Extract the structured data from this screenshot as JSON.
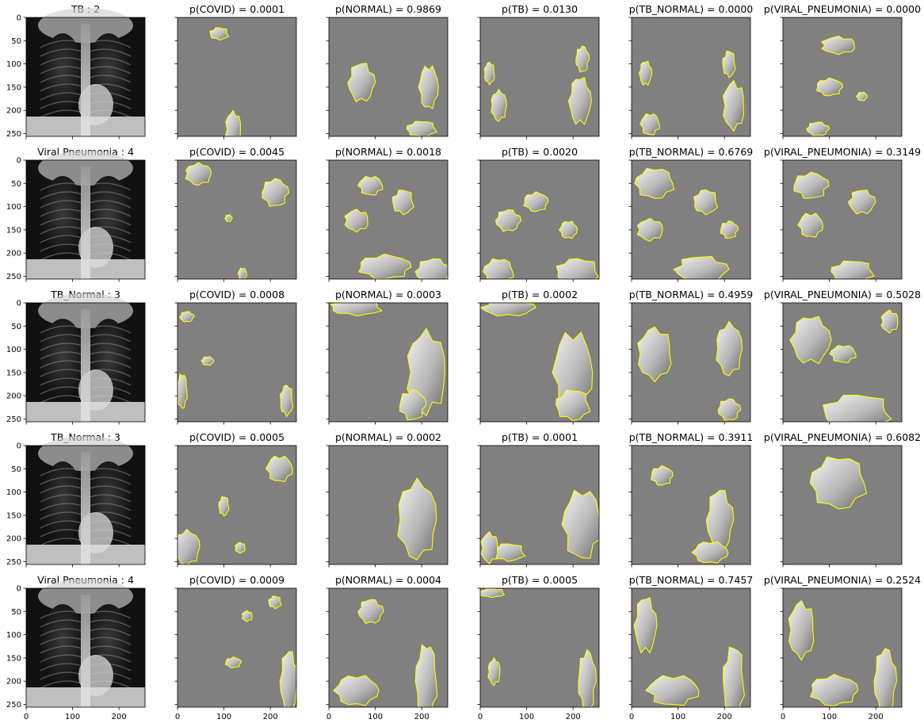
{
  "chart_data": {
    "type": "image_grid",
    "description": "",
    "x_ticks": [
      0,
      100,
      200
    ],
    "y_ticks": [
      0,
      50,
      100,
      150,
      200,
      250
    ],
    "axis_range": [
      0,
      256
    ],
    "colors": {
      "mask_gray": "#808080",
      "contour": "#ffff00",
      "frame": "#000000"
    },
    "rows": [
      {
        "label": "TB : 2",
        "probs": [
          {
            "class": "COVID",
            "title": "p(COVID) = 0.0001",
            "p": 0.0001
          },
          {
            "class": "NORMAL",
            "title": "p(NORMAL) = 0.9869",
            "p": 0.9869
          },
          {
            "class": "TB",
            "title": "p(TB) = 0.0130",
            "p": 0.013
          },
          {
            "class": "TB_NORMAL",
            "title": "p(TB_NORMAL) = 0.0000",
            "p": 0.0
          },
          {
            "class": "VIRAL_PNEUMONIA",
            "title": "p(VIRAL_PNEUMONIA) = 0.0000",
            "p": 0.0
          }
        ]
      },
      {
        "label": "Viral Pneumonia : 4",
        "probs": [
          {
            "class": "COVID",
            "title": "p(COVID) = 0.0045",
            "p": 0.0045
          },
          {
            "class": "NORMAL",
            "title": "p(NORMAL) = 0.0018",
            "p": 0.0018
          },
          {
            "class": "TB",
            "title": "p(TB) = 0.0020",
            "p": 0.002
          },
          {
            "class": "TB_NORMAL",
            "title": "p(TB_NORMAL) = 0.6769",
            "p": 0.6769
          },
          {
            "class": "VIRAL_PNEUMONIA",
            "title": "p(VIRAL_PNEUMONIA) = 0.3149",
            "p": 0.3149
          }
        ]
      },
      {
        "label": "TB_Normal : 3",
        "probs": [
          {
            "class": "COVID",
            "title": "p(COVID) = 0.0008",
            "p": 0.0008
          },
          {
            "class": "NORMAL",
            "title": "p(NORMAL) = 0.0003",
            "p": 0.0003
          },
          {
            "class": "TB",
            "title": "p(TB) = 0.0002",
            "p": 0.0002
          },
          {
            "class": "TB_NORMAL",
            "title": "p(TB_NORMAL) = 0.4959",
            "p": 0.4959
          },
          {
            "class": "VIRAL_PNEUMONIA",
            "title": "p(VIRAL_PNEUMONIA) = 0.5028",
            "p": 0.5028
          }
        ]
      },
      {
        "label": "TB_Normal : 3",
        "probs": [
          {
            "class": "COVID",
            "title": "p(COVID) = 0.0005",
            "p": 0.0005
          },
          {
            "class": "NORMAL",
            "title": "p(NORMAL) = 0.0002",
            "p": 0.0002
          },
          {
            "class": "TB",
            "title": "p(TB) = 0.0001",
            "p": 0.0001
          },
          {
            "class": "TB_NORMAL",
            "title": "p(TB_NORMAL) = 0.3911",
            "p": 0.3911
          },
          {
            "class": "VIRAL_PNEUMONIA",
            "title": "p(VIRAL_PNEUMONIA) = 0.6082",
            "p": 0.6082
          }
        ]
      },
      {
        "label": "Viral Pneumonia : 4",
        "probs": [
          {
            "class": "COVID",
            "title": "p(COVID) = 0.0009",
            "p": 0.0009
          },
          {
            "class": "NORMAL",
            "title": "p(NORMAL) = 0.0004",
            "p": 0.0004
          },
          {
            "class": "TB",
            "title": "p(TB) = 0.0005",
            "p": 0.0005
          },
          {
            "class": "TB_NORMAL",
            "title": "p(TB_NORMAL) = 0.7457",
            "p": 0.7457
          },
          {
            "class": "VIRAL_PNEUMONIA",
            "title": "p(VIRAL_PNEUMONIA) = 0.2524",
            "p": 0.2524
          }
        ]
      }
    ]
  }
}
